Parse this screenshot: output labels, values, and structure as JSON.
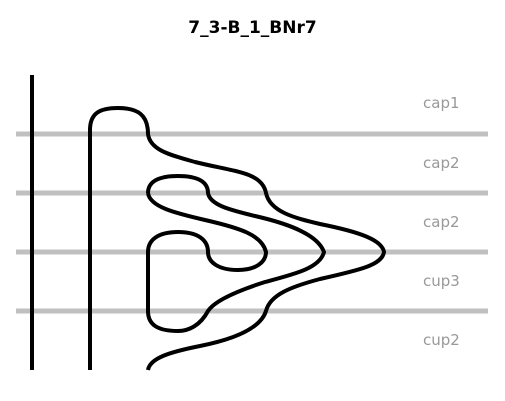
{
  "title": "7_3-B_1_BNr7",
  "colors": {
    "strand": "#000000",
    "level_line": "#c0c0c0",
    "label": "#999999"
  },
  "levels": [
    {
      "label": "cap1"
    },
    {
      "label": "cap2"
    },
    {
      "label": "cap2"
    },
    {
      "label": "cup3"
    },
    {
      "label": "cup2"
    }
  ]
}
